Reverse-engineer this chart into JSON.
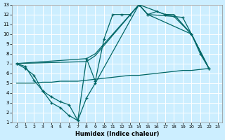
{
  "xlabel": "Humidex (Indice chaleur)",
  "bg_color": "#cceeff",
  "grid_color": "#ffffff",
  "line_color": "#006666",
  "xlim": [
    -0.5,
    23.5
  ],
  "ylim": [
    1,
    13
  ],
  "xticks": [
    0,
    1,
    2,
    3,
    4,
    5,
    6,
    7,
    8,
    9,
    10,
    11,
    12,
    13,
    14,
    15,
    16,
    17,
    18,
    19,
    20,
    21,
    22,
    23
  ],
  "yticks": [
    1,
    2,
    3,
    4,
    5,
    6,
    7,
    8,
    9,
    10,
    11,
    12,
    13
  ],
  "line_main_x": [
    0,
    1,
    2,
    3,
    4,
    5,
    6,
    7,
    8,
    9,
    10,
    11,
    12,
    13,
    14,
    15,
    16,
    17,
    18,
    19,
    20,
    21,
    22
  ],
  "line_main_y": [
    7.0,
    6.7,
    5.3,
    4.2,
    3.0,
    2.5,
    1.7,
    1.2,
    7.5,
    5.2,
    9.5,
    12.0,
    12.0,
    12.0,
    13.0,
    12.0,
    12.3,
    12.0,
    11.8,
    11.7,
    10.0,
    8.0,
    6.5
  ],
  "line_upper1_x": [
    0,
    8,
    9,
    14,
    17,
    18,
    20,
    22
  ],
  "line_upper1_y": [
    7.0,
    7.5,
    8.0,
    13.0,
    12.0,
    12.0,
    10.0,
    6.5
  ],
  "line_upper2_x": [
    0,
    8,
    9,
    14,
    15,
    18,
    20,
    22
  ],
  "line_upper2_y": [
    7.0,
    7.2,
    7.8,
    13.0,
    12.0,
    11.8,
    10.0,
    6.5
  ],
  "line_lower_x": [
    0,
    1,
    2,
    3,
    4,
    5,
    6,
    7,
    8,
    9,
    14,
    15,
    20,
    22
  ],
  "line_lower_y": [
    7.0,
    6.5,
    5.8,
    4.2,
    3.6,
    3.1,
    2.8,
    1.2,
    3.5,
    5.0,
    13.0,
    12.0,
    10.0,
    6.5
  ],
  "line_flat_x": [
    0,
    1,
    2,
    3,
    4,
    5,
    6,
    7,
    8,
    9,
    10,
    11,
    12,
    13,
    14,
    15,
    16,
    17,
    18,
    19,
    20,
    21,
    22
  ],
  "line_flat_y": [
    5.0,
    5.0,
    5.0,
    5.1,
    5.1,
    5.2,
    5.2,
    5.2,
    5.3,
    5.4,
    5.5,
    5.6,
    5.7,
    5.8,
    5.8,
    5.9,
    6.0,
    6.1,
    6.2,
    6.3,
    6.3,
    6.4,
    6.5
  ]
}
